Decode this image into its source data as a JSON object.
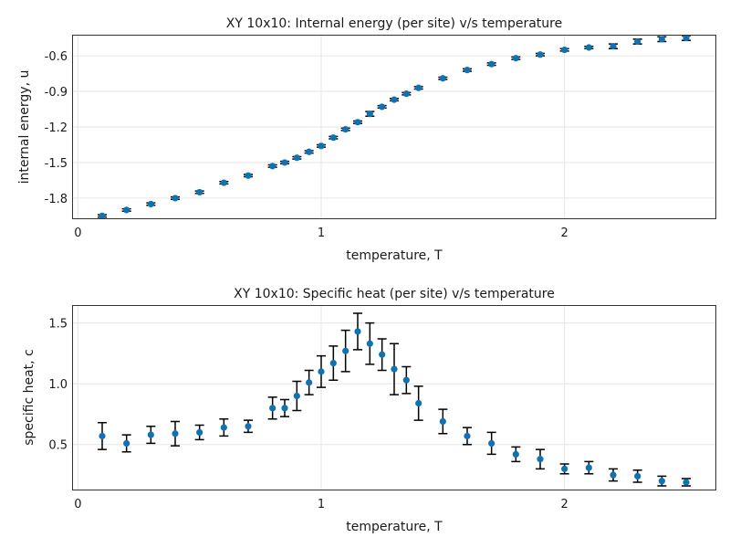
{
  "colors": {
    "marker": "#0f72b2",
    "errorbar": "#000000",
    "grid": "#e6e6e6",
    "frame": "#333333"
  },
  "chart_data": [
    {
      "type": "scatter",
      "title": "XY 10x10: Internal energy (per site) v/s temperature",
      "xlabel": "temperature, T",
      "ylabel": "internal energy, u",
      "xlim": [
        -0.02,
        2.62
      ],
      "ylim": [
        -1.97,
        -0.43
      ],
      "xticks": [
        0,
        1,
        2
      ],
      "xtick_labels": [
        "0",
        "1",
        "2"
      ],
      "yticks": [
        -1.8,
        -1.5,
        -1.2,
        -0.9,
        -0.6
      ],
      "ytick_labels": [
        "-1.8",
        "-1.5",
        "-1.2",
        "-0.9",
        "-0.6"
      ],
      "grid": true,
      "error_bars": true,
      "series": [
        {
          "x": [
            0.1,
            0.2,
            0.3,
            0.4,
            0.5,
            0.6,
            0.7,
            0.8,
            0.85,
            0.9,
            0.95,
            1.0,
            1.05,
            1.1,
            1.15,
            1.2,
            1.25,
            1.3,
            1.35,
            1.4,
            1.5,
            1.6,
            1.7,
            1.8,
            1.9,
            2.0,
            2.1,
            2.2,
            2.3,
            2.4,
            2.5
          ],
          "y": [
            -1.95,
            -1.9,
            -1.85,
            -1.8,
            -1.75,
            -1.67,
            -1.61,
            -1.53,
            -1.5,
            -1.46,
            -1.41,
            -1.36,
            -1.29,
            -1.22,
            -1.16,
            -1.09,
            -1.03,
            -0.97,
            -0.92,
            -0.87,
            -0.79,
            -0.72,
            -0.67,
            -0.62,
            -0.59,
            -0.55,
            -0.53,
            -0.52,
            -0.48,
            -0.46,
            -0.45
          ],
          "yerr": [
            0.01,
            0.01,
            0.01,
            0.01,
            0.01,
            0.01,
            0.01,
            0.01,
            0.01,
            0.01,
            0.01,
            0.01,
            0.01,
            0.01,
            0.01,
            0.02,
            0.01,
            0.01,
            0.01,
            0.01,
            0.01,
            0.01,
            0.01,
            0.01,
            0.01,
            0.01,
            0.01,
            0.02,
            0.02,
            0.02,
            0.02
          ]
        }
      ]
    },
    {
      "type": "scatter",
      "title": "XY 10x10: Specific heat (per site) v/s temperature",
      "xlabel": "temperature, T",
      "ylabel": "specific heat, c",
      "xlim": [
        -0.02,
        2.62
      ],
      "ylim": [
        0.13,
        1.64
      ],
      "xticks": [
        0,
        1,
        2
      ],
      "xtick_labels": [
        "0",
        "1",
        "2"
      ],
      "yticks": [
        0.5,
        1.0,
        1.5
      ],
      "ytick_labels": [
        "0.5",
        "1.0",
        "1.5"
      ],
      "grid": true,
      "error_bars": true,
      "series": [
        {
          "x": [
            0.1,
            0.2,
            0.3,
            0.4,
            0.5,
            0.6,
            0.7,
            0.8,
            0.85,
            0.9,
            0.95,
            1.0,
            1.05,
            1.1,
            1.15,
            1.2,
            1.25,
            1.3,
            1.35,
            1.4,
            1.5,
            1.6,
            1.7,
            1.8,
            1.9,
            2.0,
            2.1,
            2.2,
            2.3,
            2.4,
            2.5
          ],
          "y": [
            0.57,
            0.51,
            0.58,
            0.59,
            0.6,
            0.64,
            0.65,
            0.8,
            0.8,
            0.9,
            1.01,
            1.1,
            1.17,
            1.27,
            1.43,
            1.33,
            1.24,
            1.12,
            1.03,
            0.84,
            0.69,
            0.57,
            0.51,
            0.42,
            0.38,
            0.3,
            0.31,
            0.25,
            0.24,
            0.2,
            0.19
          ],
          "yerr": [
            0.11,
            0.07,
            0.07,
            0.1,
            0.06,
            0.07,
            0.05,
            0.09,
            0.07,
            0.12,
            0.1,
            0.13,
            0.14,
            0.17,
            0.15,
            0.17,
            0.13,
            0.21,
            0.11,
            0.14,
            0.1,
            0.07,
            0.09,
            0.06,
            0.08,
            0.04,
            0.05,
            0.05,
            0.05,
            0.04,
            0.03
          ]
        }
      ]
    }
  ]
}
